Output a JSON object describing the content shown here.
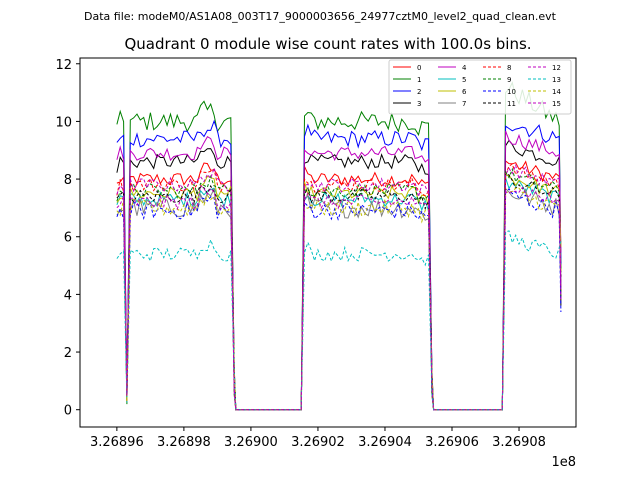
{
  "chart_data": {
    "type": "line",
    "suptitle": "Data file: modeM0/AS1A08_003T17_9000003656_24977cztM0_level2_quad_clean.evt",
    "title": "Quadrant 0 module wise count rates with 100.0s bins.",
    "xlabel": "",
    "ylabel": "",
    "x_offset_label": "1e8",
    "xlim": [
      3.268949,
      3.269097
    ],
    "ylim": [
      -0.6,
      12.2
    ],
    "xticks": [
      3.26896,
      3.26898,
      3.269,
      3.26902,
      3.26904,
      3.26906,
      3.26908
    ],
    "xtick_labels": [
      "3.26896",
      "3.26898",
      "3.26900",
      "3.26902",
      "3.26904",
      "3.26906",
      "3.26908"
    ],
    "yticks": [
      0,
      2,
      4,
      6,
      8,
      10,
      12
    ],
    "ytick_labels": [
      "0",
      "2",
      "4",
      "6",
      "8",
      "10",
      "12"
    ],
    "segments": [
      {
        "start": 3.26896,
        "dip_at": 3.268963,
        "end": 3.268994
      },
      {
        "start": 3.269016,
        "end": 3.269053
      },
      {
        "start": 3.269076,
        "end": 3.269092
      }
    ],
    "gap_level": 0.0,
    "legend_position": "top-right",
    "series": [
      {
        "name": "0",
        "color": "#ff0000",
        "style": "solid",
        "level": 8.0,
        "noise": 0.25
      },
      {
        "name": "1",
        "color": "#008000",
        "style": "solid",
        "level": 10.0,
        "noise": 0.35
      },
      {
        "name": "2",
        "color": "#0000ff",
        "style": "solid",
        "level": 9.4,
        "noise": 0.3
      },
      {
        "name": "3",
        "color": "#000000",
        "style": "solid",
        "level": 8.6,
        "noise": 0.25
      },
      {
        "name": "4",
        "color": "#bf00bf",
        "style": "solid",
        "level": 8.9,
        "noise": 0.25
      },
      {
        "name": "5",
        "color": "#00bfbf",
        "style": "solid",
        "level": 7.3,
        "noise": 0.25
      },
      {
        "name": "6",
        "color": "#bfbf00",
        "style": "solid",
        "level": 7.5,
        "noise": 0.25
      },
      {
        "name": "7",
        "color": "#808080",
        "style": "solid",
        "level": 7.0,
        "noise": 0.35
      },
      {
        "name": "8",
        "color": "#ff0000",
        "style": "dashed",
        "level": 7.8,
        "noise": 0.25
      },
      {
        "name": "9",
        "color": "#008000",
        "style": "dashed",
        "level": 7.6,
        "noise": 0.25
      },
      {
        "name": "10",
        "color": "#0000ff",
        "style": "dashed",
        "level": 6.9,
        "noise": 0.3
      },
      {
        "name": "11",
        "color": "#000000",
        "style": "dashed",
        "level": 7.4,
        "noise": 0.25
      },
      {
        "name": "12",
        "color": "#bf00bf",
        "style": "dashed",
        "level": 7.8,
        "noise": 0.25
      },
      {
        "name": "13",
        "color": "#00bfbf",
        "style": "dashed",
        "level": 5.4,
        "noise": 0.25
      },
      {
        "name": "14",
        "color": "#bfbf00",
        "style": "dashed",
        "level": 7.0,
        "noise": 0.3
      },
      {
        "name": "15",
        "color": "#bf00bf",
        "style": "dashed",
        "level": 7.2,
        "noise": 0.25
      }
    ]
  }
}
